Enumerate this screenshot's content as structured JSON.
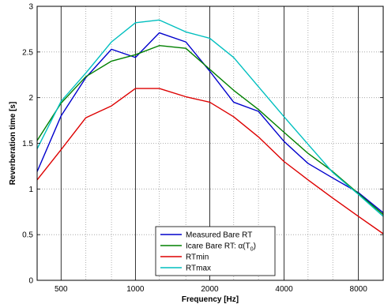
{
  "chart_data": {
    "type": "line",
    "xlabel": "Frequency [Hz]",
    "ylabel": "Reverberation time [s]",
    "x_scale": "log2",
    "xlim": [
      400,
      10079
    ],
    "ylim": [
      0,
      3
    ],
    "grid": true,
    "legend_position": "bottom-center",
    "x_major_ticks": [
      500,
      1000,
      2000,
      4000,
      8000
    ],
    "x_major_tick_labels": [
      "500",
      "1000",
      "2000",
      "4000",
      "8000"
    ],
    "x_minor_ticks": [
      630,
      800,
      1250,
      1600,
      2500,
      3150,
      5000,
      6300
    ],
    "y_ticks": [
      0,
      0.5,
      1,
      1.5,
      2,
      2.5,
      3
    ],
    "y_tick_labels": [
      "0",
      "0.5",
      "1",
      "1.5",
      "2",
      "2.5",
      "3"
    ],
    "x": [
      400,
      500,
      630,
      800,
      1000,
      1250,
      1600,
      2000,
      2500,
      3150,
      4000,
      5000,
      6300,
      8000,
      10079
    ],
    "series": [
      {
        "name": "Measured Bare RT",
        "color": "#0000cc",
        "values": [
          1.19,
          1.8,
          2.22,
          2.53,
          2.44,
          2.71,
          2.61,
          2.29,
          1.95,
          1.85,
          1.52,
          1.28,
          1.12,
          0.96,
          0.74
        ]
      },
      {
        "name": "Icare Bare RT: α(T₀)",
        "legend_main": "Icare Bare RT: α(T",
        "legend_sub": "0",
        "legend_tail": ")",
        "color": "#008000",
        "values": [
          1.53,
          1.94,
          2.23,
          2.4,
          2.47,
          2.57,
          2.54,
          2.31,
          2.08,
          1.87,
          1.62,
          1.39,
          1.19,
          0.95,
          0.72
        ]
      },
      {
        "name": "RTmin",
        "color": "#dd0000",
        "values": [
          1.1,
          1.43,
          1.78,
          1.91,
          2.1,
          2.1,
          2.01,
          1.95,
          1.79,
          1.57,
          1.3,
          1.1,
          0.9,
          0.7,
          0.51
        ]
      },
      {
        "name": "RTmax",
        "color": "#00bfbf",
        "values": [
          1.44,
          1.96,
          2.27,
          2.61,
          2.82,
          2.85,
          2.72,
          2.65,
          2.44,
          2.12,
          1.79,
          1.49,
          1.18,
          0.94,
          0.7
        ]
      }
    ]
  }
}
